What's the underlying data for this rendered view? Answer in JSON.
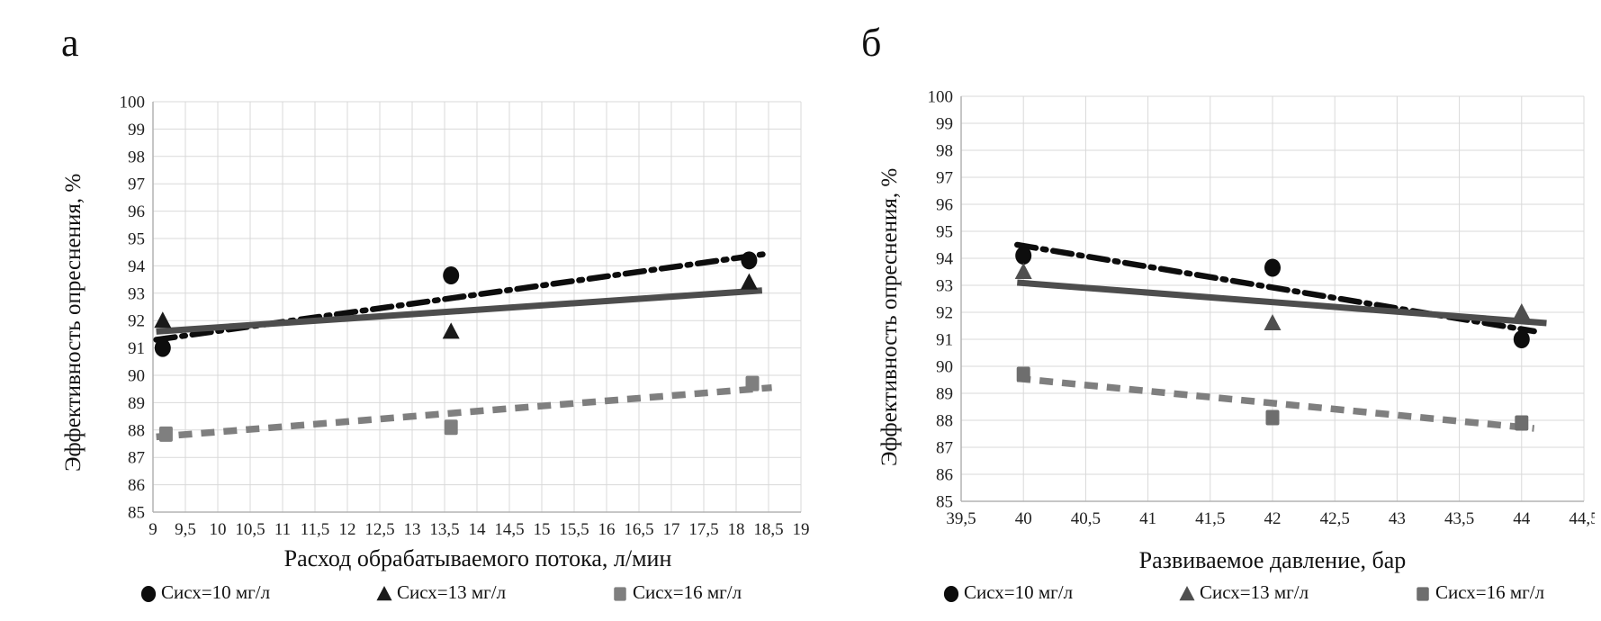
{
  "page": {
    "background": "#ffffff"
  },
  "chart_data": [
    {
      "type": "scatter",
      "panel_label": "а",
      "xlabel": "Расход обрабатываемого потока, л/мин",
      "ylabel": "Эффективность опреснения, %",
      "x_min": 9,
      "x_max": 19,
      "x_step": 0.5,
      "x_tick_labels": [
        "9",
        "9,5",
        "10",
        "10,5",
        "11",
        "11,5",
        "12",
        "12,5",
        "13",
        "13,5",
        "14",
        "14,5",
        "15",
        "15,5",
        "16",
        "16,5",
        "17",
        "17,5",
        "18",
        "18,5",
        "19"
      ],
      "y_min": 85,
      "y_max": 100,
      "y_step": 1,
      "grid": true,
      "legend_position": "bottom",
      "grid_color": "#d9d9d9",
      "axis_color": "#b3b3b3",
      "series": [
        {
          "name": "Сисх=10 мг/л",
          "marker": "circle",
          "color": "#0d0d0d",
          "points": [
            [
              9.15,
              91.0
            ],
            [
              13.6,
              93.65
            ],
            [
              18.2,
              94.2
            ]
          ],
          "trend": {
            "style": "dashdot",
            "color": "#0d0d0d",
            "width": 6.5,
            "x1": 9.05,
            "y1": 91.3,
            "x2": 18.5,
            "y2": 94.45
          }
        },
        {
          "name": "Сисх=13 мг/л",
          "marker": "triangle",
          "color": "#1a1a1a",
          "points": [
            [
              9.15,
              92.0
            ],
            [
              13.6,
              91.6
            ],
            [
              18.2,
              93.4
            ]
          ],
          "trend": {
            "style": "solid",
            "color": "#4d4d4d",
            "width": 7,
            "x1": 9.05,
            "y1": 91.6,
            "x2": 18.4,
            "y2": 93.1
          }
        },
        {
          "name": "Сисх=16 мг/л",
          "marker": "square",
          "color": "#7f7f7f",
          "points": [
            [
              9.2,
              87.85
            ],
            [
              13.6,
              88.1
            ],
            [
              18.25,
              89.7
            ]
          ],
          "trend": {
            "style": "dashed",
            "color": "#7f7f7f",
            "width": 7.5,
            "x1": 9.05,
            "y1": 87.75,
            "x2": 18.55,
            "y2": 89.55
          }
        }
      ]
    },
    {
      "type": "scatter",
      "panel_label": "б",
      "xlabel": "Развиваемое давление, бар",
      "ylabel": "Эффективность опреснения, %",
      "x_min": 39.5,
      "x_max": 44.5,
      "x_step": 0.5,
      "x_tick_labels": [
        "39,5",
        "40",
        "40,5",
        "41",
        "41,5",
        "42",
        "42,5",
        "43",
        "43,5",
        "44",
        "44,5"
      ],
      "y_min": 85,
      "y_max": 100,
      "y_step": 1,
      "grid": true,
      "legend_position": "bottom",
      "grid_color": "#d9d9d9",
      "axis_color": "#b3b3b3",
      "series": [
        {
          "name": "Сисх=10 мг/л",
          "marker": "circle",
          "color": "#0d0d0d",
          "points": [
            [
              40,
              94.1
            ],
            [
              42,
              93.65
            ],
            [
              44,
              91.0
            ]
          ],
          "trend": {
            "style": "dashdot",
            "color": "#0d0d0d",
            "width": 6.5,
            "x1": 39.95,
            "y1": 94.5,
            "x2": 44.1,
            "y2": 91.3
          }
        },
        {
          "name": "Сисх=13 мг/л",
          "marker": "triangle",
          "color": "#4f4f4f",
          "points": [
            [
              40,
              93.5
            ],
            [
              42,
              91.6
            ],
            [
              44,
              92.0
            ]
          ],
          "trend": {
            "style": "solid",
            "color": "#4d4d4d",
            "width": 7,
            "x1": 39.95,
            "y1": 93.1,
            "x2": 44.2,
            "y2": 91.6
          }
        },
        {
          "name": "Сисх=16 мг/л",
          "marker": "square",
          "color": "#6e6e6e",
          "points": [
            [
              40,
              89.7
            ],
            [
              42,
              88.1
            ],
            [
              44,
              87.9
            ]
          ],
          "trend": {
            "style": "dashed",
            "color": "#7f7f7f",
            "width": 7.5,
            "x1": 39.95,
            "y1": 89.55,
            "x2": 44.1,
            "y2": 87.7
          }
        }
      ]
    }
  ]
}
